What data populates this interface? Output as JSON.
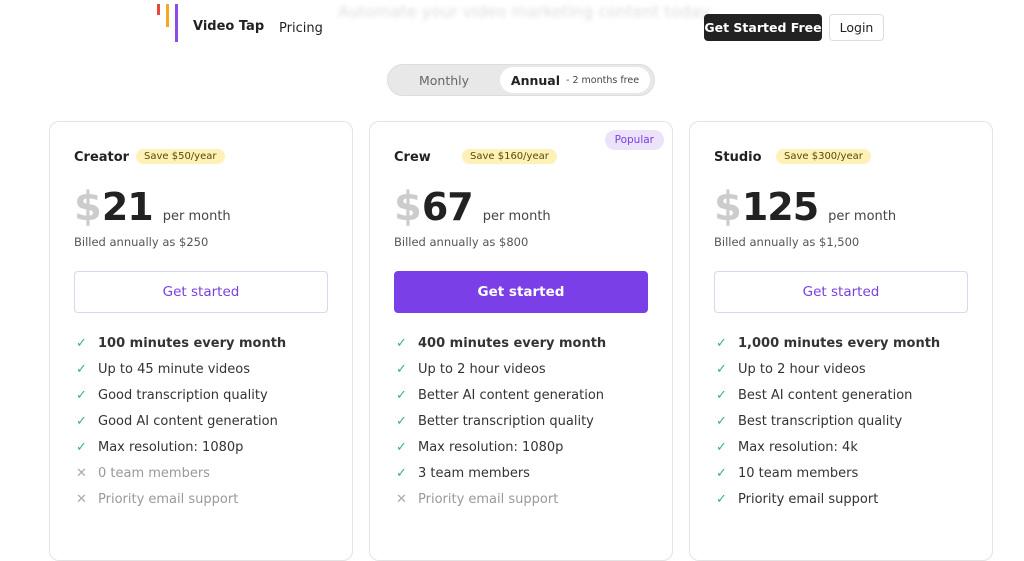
{
  "header": {
    "brand": "Video Tap",
    "nav": [
      "Pricing"
    ],
    "tagline": "Automate your video marketing content today",
    "primary_button": "Get Started Free",
    "secondary_button": "Login"
  },
  "toggle": {
    "options": [
      "Monthly",
      "Annual"
    ],
    "note": "- 2 months free",
    "selected": 1
  },
  "plans": [
    {
      "name": "Creator",
      "badge": "Save $50/year",
      "currency": "$",
      "price": 21,
      "period": "per month",
      "billing": "Billed annually as $250",
      "cta": "Get started",
      "featured": false,
      "features": [
        {
          "text": "100 minutes every month",
          "included": true,
          "bold": true
        },
        {
          "text": "Up to 45 minute videos",
          "included": true
        },
        {
          "text": "Good transcription quality",
          "included": true
        },
        {
          "text": "Good AI content generation",
          "included": true
        },
        {
          "text": "Max resolution: 1080p",
          "included": true
        },
        {
          "text": "0 team members",
          "included": false
        },
        {
          "text": "Priority email support",
          "included": false
        }
      ]
    },
    {
      "name": "Crew",
      "badge": "Save $160/year",
      "tag": "Popular",
      "currency": "$",
      "price": 67,
      "period": "per month",
      "billing": "Billed annually as $800",
      "cta": "Get started",
      "featured": true,
      "features": [
        {
          "text": "400 minutes every month",
          "included": true,
          "bold": true
        },
        {
          "text": "Up to 2 hour videos",
          "included": true
        },
        {
          "text": "Better AI content generation",
          "included": true
        },
        {
          "text": "Better transcription quality",
          "included": true
        },
        {
          "text": "Max resolution: 1080p",
          "included": true
        },
        {
          "text": "3 team members",
          "included": true
        },
        {
          "text": "Priority email support",
          "included": false
        }
      ]
    },
    {
      "name": "Studio",
      "badge": "Save $300/year",
      "currency": "$",
      "price": 125,
      "period": "per month",
      "billing": "Billed annually as $1,500",
      "cta": "Get started",
      "featured": false,
      "features": [
        {
          "text": "1,000 minutes every month",
          "included": true,
          "bold": true
        },
        {
          "text": "Up to 2 hour videos",
          "included": true
        },
        {
          "text": "Best AI content generation",
          "included": true
        },
        {
          "text": "Best transcription quality",
          "included": true
        },
        {
          "text": "Max resolution: 4k",
          "included": true
        },
        {
          "text": "10 team members",
          "included": true
        },
        {
          "text": "Priority email support",
          "included": true
        }
      ]
    }
  ]
}
